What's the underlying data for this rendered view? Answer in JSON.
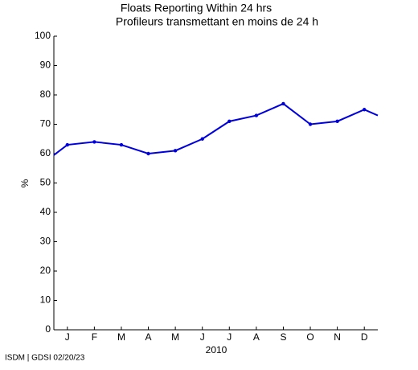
{
  "chart_data": {
    "type": "line",
    "title": "Floats Reporting Within 24 hrs",
    "subtitle": "Profileurs transmettant en moins de 24 h",
    "x_label": "2010",
    "y_label": "%",
    "footer": "ISDM | GDSI 02/20/23",
    "categories": [
      null,
      "J",
      "F",
      "M",
      "A",
      "M",
      "J",
      "J",
      "A",
      "S",
      "O",
      "N",
      "D",
      null
    ],
    "series": [
      {
        "name": "Floats Reporting Within 24 hrs",
        "color": "#0000dd",
        "values": [
          59.5,
          63,
          64,
          63,
          60,
          61,
          65,
          71,
          73,
          77,
          70,
          71,
          75,
          73
        ]
      }
    ],
    "ylim": [
      0,
      100
    ],
    "yticks": [
      0,
      10,
      20,
      30,
      40,
      50,
      60,
      70,
      80,
      90,
      100
    ]
  }
}
